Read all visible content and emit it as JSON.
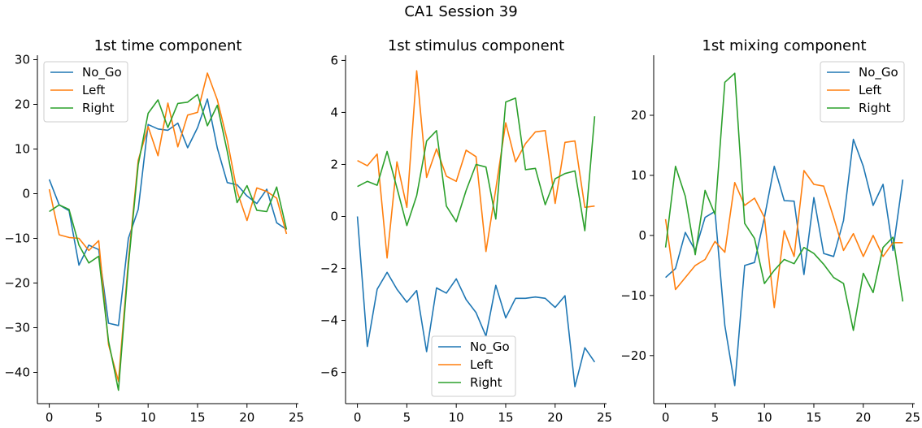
{
  "figure": {
    "suptitle": "CA1 Session 39"
  },
  "chart_data": [
    {
      "type": "line",
      "title": "1st time component",
      "xlim": [
        -1.2,
        25.2
      ],
      "ylim": [
        -47,
        31
      ],
      "xticks": [
        0,
        5,
        10,
        15,
        20,
        25
      ],
      "yticks": [
        30,
        20,
        10,
        0,
        -10,
        -20,
        -30,
        -40
      ],
      "legend_position": "top-left",
      "x": [
        0,
        1,
        2,
        3,
        4,
        5,
        6,
        7,
        8,
        9,
        10,
        11,
        12,
        13,
        14,
        15,
        16,
        17,
        18,
        19,
        20,
        21,
        22,
        23,
        24
      ],
      "series": [
        {
          "name": "No_Go",
          "color": "#1f77b4",
          "values": [
            3.2,
            -2.5,
            -3.8,
            -16,
            -11.5,
            -12.5,
            -29,
            -29.5,
            -10,
            -3.5,
            15.5,
            14.5,
            14.2,
            15.8,
            10.3,
            14.8,
            21.2,
            10.2,
            2.5,
            2.0,
            -0.5,
            -2.2,
            1.0,
            -6.5,
            -8.0
          ]
        },
        {
          "name": "Left",
          "color": "#ff7f0e",
          "values": [
            1.0,
            -9.2,
            -9.8,
            -10.0,
            -12.7,
            -10.5,
            -33.8,
            -42.0,
            -15.0,
            7.5,
            15.0,
            8.5,
            20.3,
            10.5,
            17.6,
            18.2,
            27.0,
            21.0,
            12.0,
            0.5,
            -6.0,
            1.3,
            0.5,
            -1.0,
            -9.0
          ]
        },
        {
          "name": "Right",
          "color": "#2ca02c",
          "values": [
            -4.0,
            -2.5,
            -3.5,
            -11.5,
            -15.5,
            -14.0,
            -33.0,
            -44.0,
            -16.0,
            6.5,
            18.0,
            21.0,
            14.8,
            20.2,
            20.5,
            22.2,
            15.2,
            19.8,
            9.5,
            -2.0,
            1.8,
            -3.7,
            -4.0,
            1.5,
            -8.0
          ]
        }
      ]
    },
    {
      "type": "line",
      "title": "1st stimulus component",
      "xlim": [
        -1.2,
        25.2
      ],
      "ylim": [
        -7.2,
        6.2
      ],
      "xticks": [
        0,
        5,
        10,
        15,
        20,
        25
      ],
      "yticks": [
        6,
        4,
        2,
        0,
        -2,
        -4,
        -6
      ],
      "legend_position": "bottom-center",
      "x": [
        0,
        1,
        2,
        3,
        4,
        5,
        6,
        7,
        8,
        9,
        10,
        11,
        12,
        13,
        14,
        15,
        16,
        17,
        18,
        19,
        20,
        21,
        22,
        23,
        24
      ],
      "series": [
        {
          "name": "No_Go",
          "color": "#1f77b4",
          "values": [
            0.0,
            -5.0,
            -2.8,
            -2.15,
            -2.8,
            -3.3,
            -2.85,
            -5.2,
            -2.75,
            -2.95,
            -2.4,
            -3.2,
            -3.7,
            -4.6,
            -2.65,
            -3.9,
            -3.15,
            -3.15,
            -3.1,
            -3.15,
            -3.5,
            -3.05,
            -6.55,
            -5.05,
            -5.6
          ]
        },
        {
          "name": "Left",
          "color": "#ff7f0e",
          "values": [
            2.15,
            1.95,
            2.4,
            -1.6,
            2.1,
            0.35,
            5.6,
            1.5,
            2.6,
            1.55,
            1.35,
            2.55,
            2.3,
            -1.35,
            1.05,
            3.6,
            2.1,
            2.8,
            3.25,
            3.3,
            0.5,
            2.85,
            2.9,
            0.35,
            0.4
          ]
        },
        {
          "name": "Right",
          "color": "#2ca02c",
          "values": [
            1.15,
            1.35,
            1.2,
            2.5,
            1.1,
            -0.35,
            0.8,
            2.9,
            3.3,
            0.4,
            -0.2,
            1.0,
            2.0,
            1.9,
            -0.1,
            4.4,
            4.55,
            1.8,
            1.85,
            0.45,
            1.45,
            1.65,
            1.75,
            -0.55,
            3.85
          ]
        }
      ]
    },
    {
      "type": "line",
      "title": "1st mixing component",
      "xlim": [
        -1.2,
        25.2
      ],
      "ylim": [
        -28,
        30
      ],
      "xticks": [
        0,
        5,
        10,
        15,
        20,
        25
      ],
      "yticks": [
        20,
        10,
        0,
        -10,
        -20
      ],
      "legend_position": "top-right",
      "x": [
        0,
        1,
        2,
        3,
        4,
        5,
        6,
        7,
        8,
        9,
        10,
        11,
        12,
        13,
        14,
        15,
        16,
        17,
        18,
        19,
        20,
        21,
        22,
        23,
        24
      ],
      "series": [
        {
          "name": "No_Go",
          "color": "#1f77b4",
          "values": [
            -7.0,
            -5.5,
            0.5,
            -2.5,
            3.0,
            4.0,
            -15.0,
            -25.0,
            -5.0,
            -4.5,
            3.0,
            11.5,
            5.8,
            5.7,
            -6.5,
            6.3,
            -3.0,
            -3.5,
            2.5,
            16.0,
            11.5,
            5.0,
            8.5,
            -2.5,
            9.3
          ]
        },
        {
          "name": "Left",
          "color": "#ff7f0e",
          "values": [
            2.7,
            -9.0,
            -7.0,
            -5.0,
            -4.0,
            -1.0,
            -2.8,
            8.8,
            5.0,
            6.2,
            3.0,
            -12.0,
            0.8,
            -3.5,
            10.8,
            8.5,
            8.2,
            3.0,
            -2.5,
            0.3,
            -3.5,
            0.0,
            -3.5,
            -1.2,
            -1.2
          ]
        },
        {
          "name": "Right",
          "color": "#2ca02c",
          "values": [
            -2.0,
            11.5,
            6.5,
            -3.2,
            7.5,
            3.5,
            25.5,
            27.0,
            2.0,
            -0.5,
            -8.0,
            -5.8,
            -4.0,
            -4.7,
            -2.0,
            -3.0,
            -4.8,
            -7.0,
            -8.0,
            -15.8,
            -6.3,
            -9.5,
            -2.0,
            -0.3,
            -11.0
          ]
        }
      ]
    }
  ]
}
